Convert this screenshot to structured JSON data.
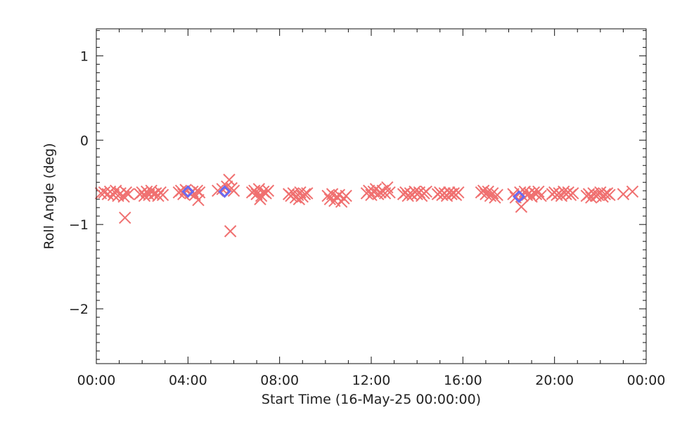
{
  "chart_data": {
    "type": "scatter",
    "title": "",
    "xlabel": "Start Time (16-May-25 00:00:00)",
    "ylabel": "Roll Angle (deg)",
    "xlim_hours": [
      0,
      24
    ],
    "ylim": [
      -2.65,
      1.32
    ],
    "x_ticks": [
      {
        "hour": 0,
        "label": "00:00"
      },
      {
        "hour": 4,
        "label": "04:00"
      },
      {
        "hour": 8,
        "label": "08:00"
      },
      {
        "hour": 12,
        "label": "12:00"
      },
      {
        "hour": 16,
        "label": "16:00"
      },
      {
        "hour": 20,
        "label": "20:00"
      },
      {
        "hour": 24,
        "label": "00:00"
      }
    ],
    "y_ticks": [
      {
        "value": 1,
        "label": "1"
      },
      {
        "value": 0,
        "label": "0"
      },
      {
        "value": -1,
        "label": "−1"
      },
      {
        "value": -2,
        "label": "−2"
      }
    ],
    "grid": false,
    "series": [
      {
        "marker": "x",
        "color": "#f07070",
        "points": [
          [
            0.2,
            -0.63
          ],
          [
            0.35,
            -0.62
          ],
          [
            0.5,
            -0.64
          ],
          [
            0.6,
            -0.61
          ],
          [
            0.75,
            -0.65
          ],
          [
            0.85,
            -0.6
          ],
          [
            0.95,
            -0.66
          ],
          [
            1.05,
            -0.63
          ],
          [
            1.2,
            -0.67
          ],
          [
            1.3,
            -0.62
          ],
          [
            1.4,
            -0.64
          ],
          [
            1.25,
            -0.92
          ],
          [
            1.9,
            -0.64
          ],
          [
            2.0,
            -0.62
          ],
          [
            2.1,
            -0.66
          ],
          [
            2.2,
            -0.61
          ],
          [
            2.3,
            -0.65
          ],
          [
            2.4,
            -0.6
          ],
          [
            2.5,
            -0.64
          ],
          [
            2.6,
            -0.63
          ],
          [
            2.7,
            -0.66
          ],
          [
            2.8,
            -0.62
          ],
          [
            2.9,
            -0.65
          ],
          [
            3.6,
            -0.62
          ],
          [
            3.7,
            -0.6
          ],
          [
            3.8,
            -0.64
          ],
          [
            3.9,
            -0.59
          ],
          [
            4.1,
            -0.63
          ],
          [
            4.2,
            -0.61
          ],
          [
            4.3,
            -0.65
          ],
          [
            4.4,
            -0.6
          ],
          [
            4.5,
            -0.62
          ],
          [
            4.45,
            -0.71
          ],
          [
            5.3,
            -0.6
          ],
          [
            5.5,
            -0.58
          ],
          [
            5.7,
            -0.55
          ],
          [
            5.8,
            -0.47
          ],
          [
            5.9,
            -0.57
          ],
          [
            6.0,
            -0.6
          ],
          [
            5.85,
            -1.08
          ],
          [
            6.8,
            -0.62
          ],
          [
            6.9,
            -0.6
          ],
          [
            7.0,
            -0.64
          ],
          [
            7.1,
            -0.58
          ],
          [
            7.2,
            -0.66
          ],
          [
            7.3,
            -0.61
          ],
          [
            7.4,
            -0.63
          ],
          [
            7.5,
            -0.6
          ],
          [
            7.15,
            -0.7
          ],
          [
            8.4,
            -0.64
          ],
          [
            8.5,
            -0.66
          ],
          [
            8.6,
            -0.63
          ],
          [
            8.7,
            -0.68
          ],
          [
            8.8,
            -0.65
          ],
          [
            8.9,
            -0.62
          ],
          [
            9.0,
            -0.67
          ],
          [
            9.1,
            -0.64
          ],
          [
            9.2,
            -0.63
          ],
          [
            8.85,
            -0.7
          ],
          [
            10.1,
            -0.66
          ],
          [
            10.2,
            -0.7
          ],
          [
            10.3,
            -0.64
          ],
          [
            10.4,
            -0.72
          ],
          [
            10.5,
            -0.67
          ],
          [
            10.6,
            -0.65
          ],
          [
            10.7,
            -0.73
          ],
          [
            10.8,
            -0.69
          ],
          [
            10.9,
            -0.66
          ],
          [
            11.8,
            -0.63
          ],
          [
            11.9,
            -0.6
          ],
          [
            12.0,
            -0.65
          ],
          [
            12.1,
            -0.61
          ],
          [
            12.2,
            -0.58
          ],
          [
            12.3,
            -0.64
          ],
          [
            12.4,
            -0.62
          ],
          [
            12.5,
            -0.6
          ],
          [
            12.6,
            -0.63
          ],
          [
            12.7,
            -0.56
          ],
          [
            12.8,
            -0.62
          ],
          [
            13.4,
            -0.64
          ],
          [
            13.5,
            -0.62
          ],
          [
            13.6,
            -0.66
          ],
          [
            13.7,
            -0.63
          ],
          [
            13.8,
            -0.65
          ],
          [
            13.9,
            -0.61
          ],
          [
            14.0,
            -0.64
          ],
          [
            14.1,
            -0.62
          ],
          [
            14.2,
            -0.66
          ],
          [
            14.3,
            -0.63
          ],
          [
            14.4,
            -0.61
          ],
          [
            14.9,
            -0.64
          ],
          [
            15.0,
            -0.62
          ],
          [
            15.1,
            -0.65
          ],
          [
            15.2,
            -0.63
          ],
          [
            15.3,
            -0.66
          ],
          [
            15.4,
            -0.62
          ],
          [
            15.5,
            -0.64
          ],
          [
            15.6,
            -0.63
          ],
          [
            15.7,
            -0.65
          ],
          [
            15.8,
            -0.62
          ],
          [
            16.8,
            -0.62
          ],
          [
            16.9,
            -0.6
          ],
          [
            17.0,
            -0.64
          ],
          [
            17.1,
            -0.61
          ],
          [
            17.2,
            -0.66
          ],
          [
            17.3,
            -0.63
          ],
          [
            17.4,
            -0.68
          ],
          [
            17.5,
            -0.65
          ],
          [
            18.2,
            -0.64
          ],
          [
            18.3,
            -0.68
          ],
          [
            18.5,
            -0.62
          ],
          [
            18.6,
            -0.66
          ],
          [
            18.55,
            -0.79
          ],
          [
            18.7,
            -0.61
          ],
          [
            18.8,
            -0.65
          ],
          [
            18.9,
            -0.63
          ],
          [
            19.0,
            -0.67
          ],
          [
            19.1,
            -0.62
          ],
          [
            19.2,
            -0.64
          ],
          [
            19.3,
            -0.61
          ],
          [
            19.4,
            -0.66
          ],
          [
            19.9,
            -0.64
          ],
          [
            20.0,
            -0.62
          ],
          [
            20.1,
            -0.65
          ],
          [
            20.2,
            -0.63
          ],
          [
            20.3,
            -0.66
          ],
          [
            20.4,
            -0.61
          ],
          [
            20.5,
            -0.64
          ],
          [
            20.6,
            -0.62
          ],
          [
            20.7,
            -0.65
          ],
          [
            20.8,
            -0.63
          ],
          [
            21.4,
            -0.66
          ],
          [
            21.5,
            -0.64
          ],
          [
            21.6,
            -0.68
          ],
          [
            21.7,
            -0.63
          ],
          [
            21.8,
            -0.66
          ],
          [
            21.9,
            -0.65
          ],
          [
            22.0,
            -0.62
          ],
          [
            22.1,
            -0.67
          ],
          [
            22.2,
            -0.64
          ],
          [
            22.3,
            -0.63
          ],
          [
            22.4,
            -0.65
          ],
          [
            23.0,
            -0.64
          ],
          [
            23.4,
            -0.61
          ]
        ]
      },
      {
        "marker": "diamond",
        "color": "#6a6af0",
        "points": [
          [
            4.0,
            -0.61
          ],
          [
            5.6,
            -0.61
          ],
          [
            18.45,
            -0.67
          ]
        ]
      }
    ]
  }
}
